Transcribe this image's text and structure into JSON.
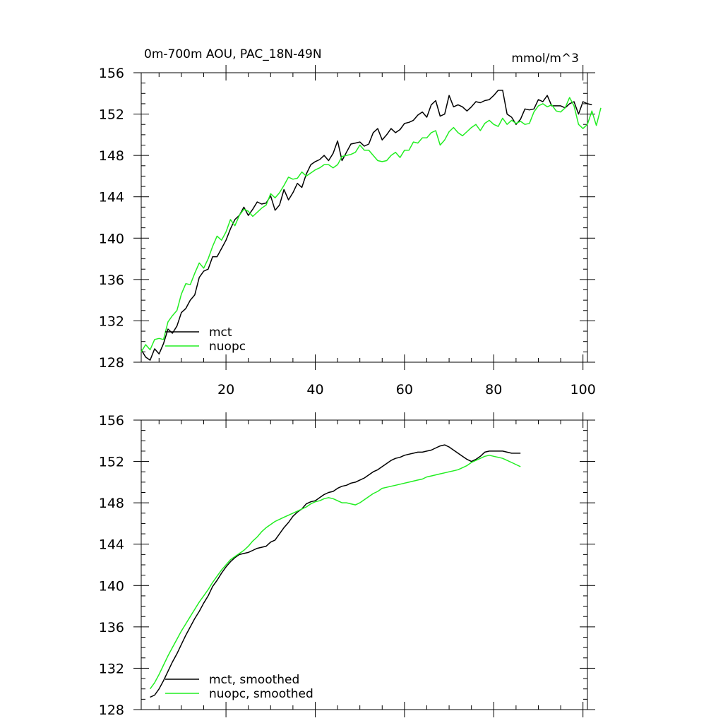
{
  "chart_data": [
    {
      "type": "line",
      "title_left": "0m-700m AOU, PAC_18N-49N",
      "title_right": "mmol/m^3",
      "xlim": [
        1,
        101
      ],
      "ylim": [
        128,
        156
      ],
      "xticks": [
        20,
        40,
        60,
        80,
        100
      ],
      "yticks": [
        128,
        132,
        136,
        140,
        144,
        148,
        152,
        156
      ],
      "xtick_labels": [
        "20",
        "40",
        "60",
        "80",
        "100"
      ],
      "ytick_labels": [
        "128",
        "132",
        "136",
        "140",
        "144",
        "148",
        "152",
        "156"
      ],
      "legend_position": "lower-left",
      "x_start": 1,
      "series": [
        {
          "name": "mct",
          "color": "#000000",
          "values": [
            129.2,
            128.5,
            128.2,
            129.3,
            128.8,
            129.8,
            131.2,
            130.8,
            131.5,
            132.8,
            133.2,
            134.0,
            134.5,
            136.2,
            136.8,
            137.0,
            138.2,
            138.2,
            139.0,
            139.8,
            140.9,
            141.8,
            142.2,
            143.0,
            142.2,
            142.8,
            143.5,
            143.3,
            143.4,
            144.1,
            142.7,
            143.2,
            144.7,
            143.7,
            144.4,
            145.3,
            144.9,
            146.2,
            147.1,
            147.4,
            147.6,
            148.0,
            147.5,
            148.2,
            149.4,
            147.5,
            148.3,
            149.1,
            149.2,
            149.3,
            148.9,
            149.1,
            150.2,
            150.6,
            149.5,
            150.0,
            150.6,
            150.2,
            150.5,
            151.1,
            151.2,
            151.4,
            151.9,
            152.2,
            151.7,
            152.9,
            153.3,
            151.8,
            152.0,
            153.8,
            152.7,
            152.9,
            152.7,
            152.3,
            152.7,
            153.2,
            153.1,
            153.3,
            153.4,
            153.8,
            154.3,
            154.3,
            152.0,
            151.7,
            151.0,
            151.5,
            152.5,
            152.4,
            152.5,
            153.4,
            153.2,
            153.8,
            152.8,
            152.8,
            152.8,
            152.6,
            153.0,
            153.2,
            152.0,
            153.2,
            153.0,
            152.9
          ]
        },
        {
          "name": "nuopc",
          "color": "#22ee22",
          "values": [
            129.0,
            129.7,
            129.2,
            130.2,
            130.3,
            130.2,
            131.9,
            132.5,
            133.0,
            134.6,
            135.6,
            135.5,
            136.6,
            137.6,
            137.1,
            138.0,
            139.2,
            140.2,
            139.8,
            140.6,
            141.8,
            141.2,
            142.2,
            142.8,
            142.6,
            142.1,
            142.5,
            142.9,
            143.2,
            144.3,
            143.9,
            144.4,
            145.1,
            145.9,
            145.7,
            145.8,
            146.4,
            146.0,
            146.3,
            146.6,
            146.8,
            147.1,
            147.1,
            146.8,
            147.1,
            147.9,
            148.0,
            148.1,
            148.3,
            149.0,
            148.5,
            148.5,
            148.0,
            147.5,
            147.4,
            147.5,
            148.0,
            148.3,
            147.8,
            148.5,
            148.5,
            149.3,
            149.2,
            149.7,
            149.7,
            150.2,
            150.4,
            149.0,
            149.5,
            150.3,
            150.7,
            150.2,
            149.9,
            150.3,
            150.7,
            151.0,
            150.4,
            151.1,
            151.4,
            151.0,
            150.8,
            151.6,
            151.0,
            151.4,
            151.1,
            151.3,
            151.0,
            151.1,
            152.2,
            152.8,
            153.0,
            152.7,
            152.9,
            152.3,
            152.2,
            152.6,
            153.6,
            152.8,
            151.0,
            150.6,
            151.0,
            152.3,
            150.9,
            152.6
          ]
        }
      ]
    },
    {
      "type": "line",
      "xlim": [
        1,
        101
      ],
      "ylim": [
        128,
        156
      ],
      "xticks": [
        20,
        40,
        60,
        80,
        100
      ],
      "yticks": [
        128,
        132,
        136,
        140,
        144,
        148,
        152,
        156
      ],
      "ytick_labels": [
        "128",
        "132",
        "136",
        "140",
        "144",
        "148",
        "152",
        "156"
      ],
      "legend_position": "lower-left",
      "x_start": 3,
      "series": [
        {
          "name": "mct, smoothed",
          "color": "#000000",
          "values": [
            129.2,
            129.4,
            130.0,
            130.8,
            131.7,
            132.6,
            133.4,
            134.3,
            135.2,
            136.0,
            136.8,
            137.5,
            138.3,
            139.0,
            139.9,
            140.5,
            141.2,
            141.8,
            142.3,
            142.7,
            143.0,
            143.1,
            143.2,
            143.4,
            143.6,
            143.7,
            143.8,
            144.2,
            144.4,
            145.0,
            145.6,
            146.1,
            146.7,
            147.1,
            147.4,
            147.9,
            148.1,
            148.2,
            148.5,
            148.8,
            149.0,
            149.1,
            149.4,
            149.6,
            149.7,
            149.9,
            150.0,
            150.2,
            150.4,
            150.7,
            151.0,
            151.2,
            151.5,
            151.8,
            152.1,
            152.3,
            152.4,
            152.6,
            152.7,
            152.8,
            152.9,
            152.9,
            153.0,
            153.1,
            153.3,
            153.5,
            153.6,
            153.4,
            153.1,
            152.8,
            152.5,
            152.2,
            152.0,
            152.2,
            152.5,
            152.9,
            153.0,
            153.0,
            153.0,
            153.0,
            152.9,
            152.8,
            152.8,
            152.8
          ]
        },
        {
          "name": "nuopc, smoothed",
          "color": "#22ee22",
          "values": [
            130.0,
            130.6,
            131.4,
            132.3,
            133.2,
            134.0,
            134.8,
            135.6,
            136.3,
            137.0,
            137.7,
            138.4,
            139.0,
            139.6,
            140.3,
            140.9,
            141.5,
            142.0,
            142.5,
            142.8,
            143.1,
            143.4,
            143.8,
            144.3,
            144.7,
            145.2,
            145.6,
            145.9,
            146.2,
            146.4,
            146.6,
            146.8,
            147.0,
            147.2,
            147.4,
            147.6,
            147.9,
            148.1,
            148.2,
            148.4,
            148.5,
            148.4,
            148.2,
            148.0,
            148.0,
            147.9,
            147.8,
            148.0,
            148.3,
            148.6,
            148.9,
            149.1,
            149.4,
            149.5,
            149.6,
            149.7,
            149.8,
            149.9,
            150.0,
            150.1,
            150.2,
            150.3,
            150.5,
            150.6,
            150.7,
            150.8,
            150.9,
            151.0,
            151.1,
            151.2,
            151.4,
            151.6,
            151.9,
            152.1,
            152.3,
            152.5,
            152.6,
            152.5,
            152.4,
            152.3,
            152.1,
            151.9,
            151.7,
            151.5
          ]
        }
      ]
    }
  ]
}
